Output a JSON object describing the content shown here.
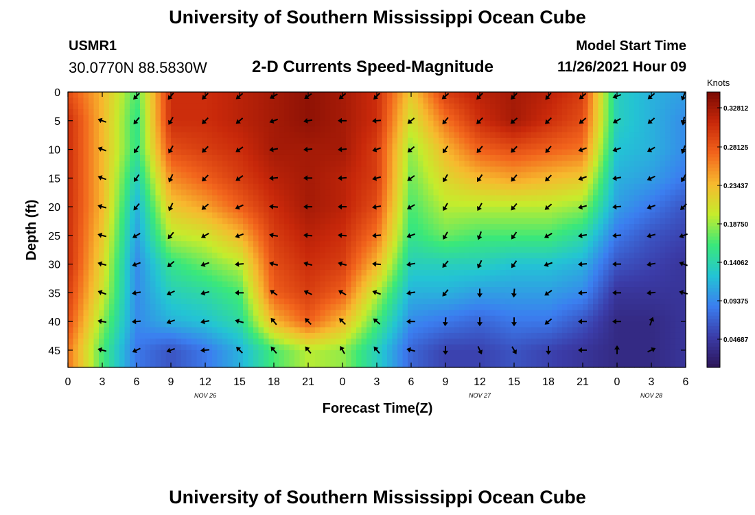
{
  "title": "University of Southern Mississippi Ocean Cube",
  "station": {
    "id": "USMR1",
    "coords": "30.0770N  88.5830W"
  },
  "model_start": {
    "label": "Model Start Time",
    "value": "11/26/2021 Hour 09"
  },
  "chart_data": {
    "type": "heatmap",
    "title": "2-D Currents Speed-Magnitude",
    "xlabel": "Forecast Time(Z)",
    "ylabel": "Depth (ft)",
    "colorbar_label": "Knots",
    "x_tick_labels": [
      "0",
      "3",
      "6",
      "9",
      "12",
      "15",
      "18",
      "21",
      "0",
      "3",
      "6",
      "9",
      "12",
      "15",
      "18",
      "21",
      "0",
      "3",
      "6"
    ],
    "x_range_hours": [
      0,
      54
    ],
    "date_labels": [
      {
        "hour": 12,
        "label": "NOV 26"
      },
      {
        "hour": 36,
        "label": "NOV 27"
      },
      {
        "hour": 51,
        "label": "NOV 28"
      }
    ],
    "y_ticks": [
      0,
      5,
      10,
      15,
      20,
      25,
      30,
      35,
      40,
      45
    ],
    "y_range": [
      0,
      48
    ],
    "y_inverted": true,
    "colorbar_ticks": [
      "0.32812",
      "0.28125",
      "0.23437",
      "0.18750",
      "0.14062",
      "0.09375",
      "0.04687"
    ],
    "color_range": [
      0.02,
      0.35
    ],
    "colormap": [
      "#2c1558",
      "#3b3ca8",
      "#3b7ef0",
      "#23c4d4",
      "#3ae87a",
      "#c6ec2c",
      "#f7b92e",
      "#f2641c",
      "#c8280a",
      "#7a0a03"
    ],
    "time_hours": [
      0,
      3,
      6,
      9,
      12,
      15,
      18,
      21,
      24,
      27,
      30,
      33,
      36,
      39,
      42,
      45,
      48,
      51,
      54
    ],
    "depths_ft": [
      0,
      5,
      10,
      15,
      20,
      25,
      30,
      35,
      40,
      45
    ],
    "speed_knots": [
      [
        0.29,
        0.24,
        0.17,
        0.31,
        0.31,
        0.32,
        0.33,
        0.34,
        0.33,
        0.31,
        0.23,
        0.3,
        0.32,
        0.33,
        0.32,
        0.3,
        0.14,
        0.12,
        0.11
      ],
      [
        0.31,
        0.24,
        0.16,
        0.31,
        0.31,
        0.32,
        0.33,
        0.34,
        0.33,
        0.31,
        0.21,
        0.27,
        0.31,
        0.33,
        0.31,
        0.29,
        0.14,
        0.12,
        0.1
      ],
      [
        0.31,
        0.24,
        0.16,
        0.29,
        0.3,
        0.31,
        0.33,
        0.33,
        0.33,
        0.3,
        0.19,
        0.24,
        0.28,
        0.29,
        0.28,
        0.27,
        0.13,
        0.12,
        0.1
      ],
      [
        0.31,
        0.24,
        0.14,
        0.26,
        0.28,
        0.3,
        0.32,
        0.33,
        0.32,
        0.3,
        0.18,
        0.22,
        0.24,
        0.25,
        0.24,
        0.23,
        0.12,
        0.11,
        0.09
      ],
      [
        0.31,
        0.24,
        0.12,
        0.23,
        0.25,
        0.28,
        0.31,
        0.33,
        0.32,
        0.29,
        0.17,
        0.2,
        0.2,
        0.2,
        0.2,
        0.19,
        0.11,
        0.09,
        0.07
      ],
      [
        0.31,
        0.23,
        0.11,
        0.2,
        0.21,
        0.24,
        0.3,
        0.32,
        0.31,
        0.27,
        0.16,
        0.18,
        0.17,
        0.17,
        0.17,
        0.15,
        0.09,
        0.07,
        0.06
      ],
      [
        0.31,
        0.22,
        0.1,
        0.16,
        0.18,
        0.2,
        0.29,
        0.31,
        0.3,
        0.24,
        0.14,
        0.14,
        0.14,
        0.13,
        0.13,
        0.12,
        0.07,
        0.06,
        0.05
      ],
      [
        0.3,
        0.21,
        0.1,
        0.14,
        0.15,
        0.17,
        0.28,
        0.3,
        0.28,
        0.2,
        0.12,
        0.12,
        0.11,
        0.11,
        0.11,
        0.1,
        0.05,
        0.05,
        0.05
      ],
      [
        0.29,
        0.19,
        0.1,
        0.12,
        0.13,
        0.15,
        0.24,
        0.28,
        0.24,
        0.17,
        0.1,
        0.09,
        0.08,
        0.09,
        0.09,
        0.07,
        0.04,
        0.04,
        0.05
      ],
      [
        0.27,
        0.17,
        0.09,
        0.07,
        0.09,
        0.12,
        0.17,
        0.2,
        0.19,
        0.14,
        0.08,
        0.06,
        0.06,
        0.07,
        0.06,
        0.05,
        0.04,
        0.04,
        0.05
      ]
    ],
    "arrow_direction_deg": [
      [
        null,
        null,
        225,
        220,
        225,
        230,
        240,
        235,
        230,
        225,
        null,
        230,
        225,
        225,
        220,
        230,
        250,
        230,
        200
      ],
      [
        null,
        290,
        220,
        210,
        225,
        230,
        250,
        260,
        270,
        265,
        230,
        220,
        225,
        230,
        225,
        230,
        240,
        230,
        190
      ],
      [
        null,
        290,
        215,
        210,
        225,
        235,
        260,
        265,
        265,
        250,
        230,
        215,
        220,
        225,
        220,
        250,
        250,
        240,
        200
      ],
      [
        null,
        290,
        215,
        205,
        225,
        235,
        265,
        270,
        265,
        255,
        235,
        210,
        215,
        220,
        225,
        250,
        260,
        245,
        210
      ],
      [
        null,
        285,
        220,
        205,
        230,
        245,
        275,
        270,
        270,
        260,
        240,
        210,
        210,
        220,
        230,
        255,
        265,
        250,
        225
      ],
      [
        null,
        285,
        240,
        220,
        240,
        250,
        280,
        275,
        275,
        265,
        250,
        210,
        200,
        215,
        240,
        260,
        265,
        255,
        250
      ],
      [
        null,
        285,
        250,
        230,
        250,
        265,
        285,
        285,
        285,
        275,
        260,
        220,
        205,
        215,
        250,
        265,
        270,
        260,
        290
      ],
      [
        null,
        290,
        260,
        245,
        255,
        270,
        305,
        295,
        300,
        290,
        260,
        220,
        180,
        185,
        235,
        265,
        270,
        265,
        285
      ],
      [
        null,
        280,
        265,
        250,
        260,
        285,
        320,
        315,
        315,
        310,
        270,
        185,
        180,
        180,
        230,
        270,
        270,
        20,
        null
      ],
      [
        null,
        285,
        245,
        250,
        265,
        315,
        320,
        320,
        330,
        320,
        285,
        180,
        155,
        150,
        180,
        270,
        0,
        65,
        null
      ]
    ]
  }
}
